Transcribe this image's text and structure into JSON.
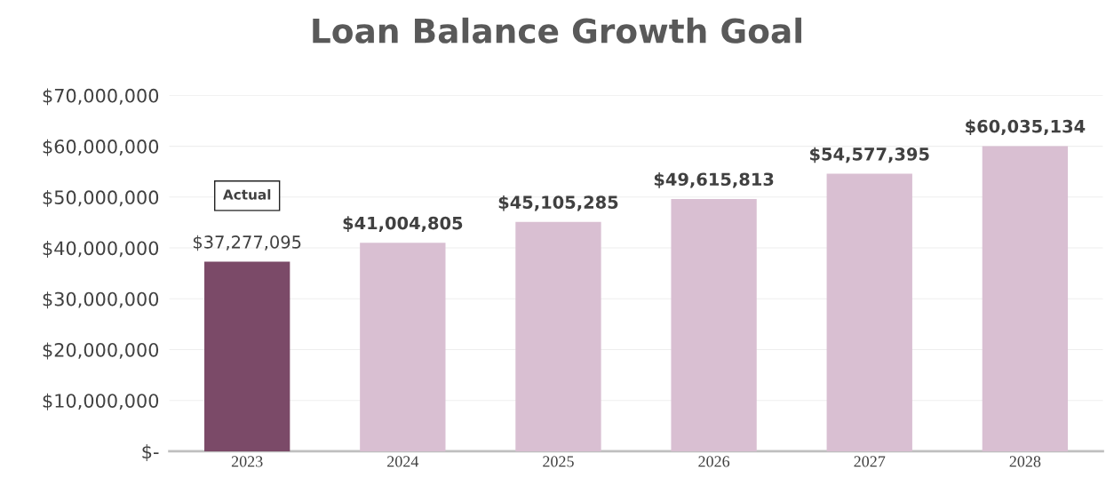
{
  "chart_data": {
    "type": "bar",
    "title": "Loan Balance Growth Goal",
    "categories": [
      "2023",
      "2024",
      "2025",
      "2026",
      "2027",
      "2028"
    ],
    "values": [
      37277095,
      41004805,
      45105285,
      49615813,
      54577395,
      60035134
    ],
    "colors": [
      "#7b4a68",
      "#d9bfd2",
      "#d9bfd2",
      "#d9bfd2",
      "#d9bfd2",
      "#d9bfd2"
    ],
    "value_labels": [
      "$37,277,095",
      "$41,004,805",
      "$45,105,285",
      "$49,615,813",
      "$54,577,395",
      "$60,035,134"
    ],
    "ylim": [
      0,
      70000000
    ],
    "yticks": [
      {
        "value": 0,
        "label": "$-"
      },
      {
        "value": 10000000,
        "label": "$10,000,000"
      },
      {
        "value": 20000000,
        "label": "$20,000,000"
      },
      {
        "value": 30000000,
        "label": "$30,000,000"
      },
      {
        "value": 40000000,
        "label": "$40,000,000"
      },
      {
        "value": 50000000,
        "label": "$50,000,000"
      },
      {
        "value": 60000000,
        "label": "$60,000,000"
      },
      {
        "value": 70000000,
        "label": "$70,000,000"
      }
    ],
    "grid": "y",
    "annotations": [
      "Actual"
    ]
  }
}
